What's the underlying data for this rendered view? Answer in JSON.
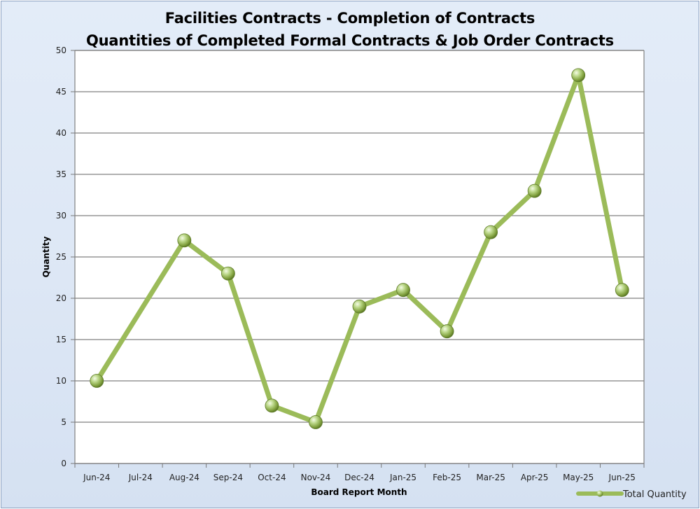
{
  "chart_data": {
    "type": "line",
    "title": "Facilities Contracts - Completion of Contracts",
    "subtitle": "Quantities of Completed Formal Contracts & Job Order Contracts",
    "xlabel": "Board Report Month",
    "ylabel": "Quantity",
    "categories": [
      "Jun-24",
      "Jul-24",
      "Aug-24",
      "Sep-24",
      "Oct-24",
      "Nov-24",
      "Dec-24",
      "Jan-25",
      "Feb-25",
      "Mar-25",
      "Apr-25",
      "May-25",
      "Jun-25"
    ],
    "series": [
      {
        "name": "Total Quantity",
        "color": "#9bbb59",
        "values": [
          10,
          null,
          27,
          23,
          7,
          5,
          19,
          21,
          16,
          28,
          33,
          47,
          21
        ]
      }
    ],
    "ylim": [
      0,
      50
    ],
    "yticks": [
      0,
      5,
      10,
      15,
      20,
      25,
      30,
      35,
      40,
      45,
      50
    ],
    "grid": true,
    "legend_position": "bottom-right",
    "plot_background": "#ffffff",
    "gridline_color": "#808080"
  }
}
